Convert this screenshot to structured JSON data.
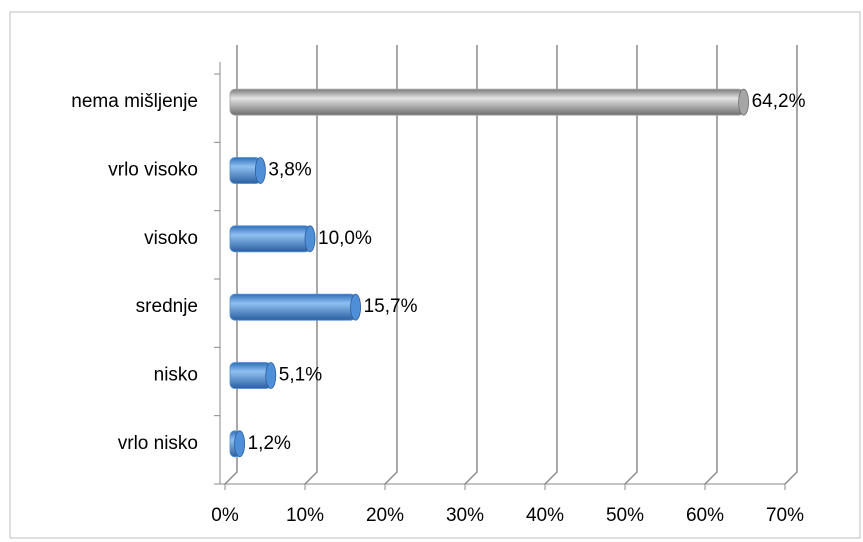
{
  "chart_data": {
    "type": "bar",
    "orientation": "horizontal",
    "categories": [
      "vrlo nisko",
      "nisko",
      "srednje",
      "visoko",
      "vrlo visoko",
      "nema mišljenje"
    ],
    "values": [
      1.2,
      5.1,
      15.7,
      10.0,
      3.8,
      64.2
    ],
    "value_labels": [
      "1,2%",
      "5,1%",
      "15,7%",
      "10,0%",
      "3,8%",
      "64,2%"
    ],
    "colors": [
      "#4f8fd8",
      "#4f8fd8",
      "#4f8fd8",
      "#4f8fd8",
      "#4f8fd8",
      "#a6a6a6"
    ],
    "xlim": [
      0,
      70
    ],
    "xticks": [
      {
        "value": 0,
        "label": "0%"
      },
      {
        "value": 10,
        "label": "10%"
      },
      {
        "value": 20,
        "label": "20%"
      },
      {
        "value": 30,
        "label": "30%"
      },
      {
        "value": 40,
        "label": "40%"
      },
      {
        "value": 50,
        "label": "50%"
      },
      {
        "value": 60,
        "label": "60%"
      },
      {
        "value": 70,
        "label": "70%"
      }
    ],
    "grid": true
  }
}
